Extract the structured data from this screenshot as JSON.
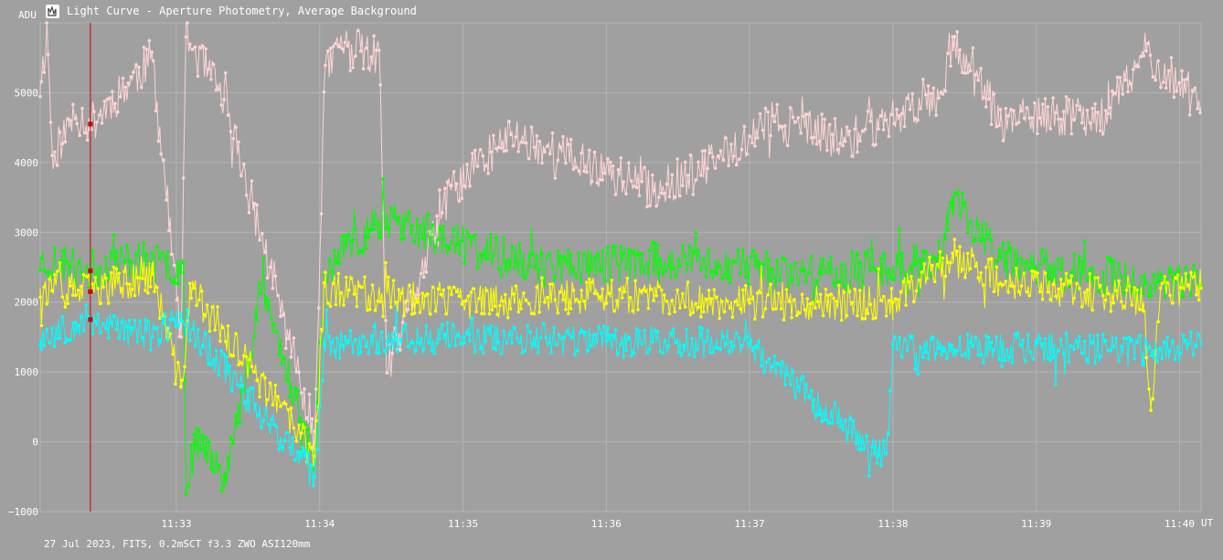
{
  "window": {
    "title": "Light Curve - Aperture Photometry, Average Background",
    "icon": "light-curve-app-icon"
  },
  "footer": "27 Jul 2023, FITS, 0.2mSCT f3.3 ZWO ASI120mm",
  "colors": {
    "background": "#a0a0a0",
    "grid": "#b4b4b4",
    "pink": "#ffd4d4",
    "green": "#00ff00",
    "yellow": "#ffff00",
    "cyan": "#00ffff",
    "cursor": "#cc0000"
  },
  "chart_data": {
    "type": "line",
    "ylabel": "ADU",
    "xlabel": "UT",
    "ylim": [
      -1000,
      6000
    ],
    "yticks": [
      5000,
      4000,
      3000,
      2000,
      1000,
      0,
      -1000
    ],
    "ytick_labels": [
      "5000",
      "4000",
      "3000",
      "2000",
      "1000",
      "0",
      "−1000"
    ],
    "xlim": [
      "11:32:03",
      "11:40:09"
    ],
    "xticks": [
      "11:33",
      "11:34",
      "11:35",
      "11:36",
      "11:37",
      "11:38",
      "11:39",
      "11:40"
    ],
    "grid": true,
    "cursor_time": "11:32:24",
    "series": [
      {
        "color": "#ffd4d4",
        "base": 4550,
        "amplitude": 300,
        "seed": 11,
        "points": [
          [
            "11:32:03",
            5100
          ],
          [
            "11:32:06",
            5900
          ],
          [
            "11:32:08",
            4100
          ],
          [
            "11:32:18",
            4700
          ],
          [
            "11:32:24",
            4550
          ],
          [
            "11:32:50",
            5500
          ],
          [
            "11:33:02",
            1500
          ],
          [
            "11:33:04",
            5800
          ],
          [
            "11:33:20",
            4900
          ],
          [
            "11:33:58",
            100
          ],
          [
            "11:34:02",
            5200
          ],
          [
            "11:34:08",
            5700
          ],
          [
            "11:34:25",
            5500
          ],
          [
            "11:34:28",
            1000
          ],
          [
            "11:34:55",
            3600
          ],
          [
            "11:35:20",
            4400
          ],
          [
            "11:36:20",
            3600
          ],
          [
            "11:36:40",
            3900
          ],
          [
            "11:37:10",
            4600
          ],
          [
            "11:37:40",
            4300
          ],
          [
            "11:38:20",
            5000
          ],
          [
            "11:38:25",
            5800
          ],
          [
            "11:38:45",
            4600
          ],
          [
            "11:39:30",
            4700
          ],
          [
            "11:39:46",
            5600
          ],
          [
            "11:40:09",
            4800
          ]
        ]
      },
      {
        "color": "#00ff00",
        "base": 2500,
        "amplitude": 280,
        "seed": 23,
        "points": [
          [
            "11:32:03",
            2600
          ],
          [
            "11:32:24",
            2450
          ],
          [
            "11:32:40",
            2600
          ],
          [
            "11:33:03",
            2500
          ],
          [
            "11:33:04",
            -500
          ],
          [
            "11:33:10",
            100
          ],
          [
            "11:33:20",
            -500
          ],
          [
            "11:33:25",
            200
          ],
          [
            "11:33:28",
            700
          ],
          [
            "11:33:35",
            2300
          ],
          [
            "11:33:58",
            -300
          ],
          [
            "11:34:02",
            2400
          ],
          [
            "11:34:25",
            3200
          ],
          [
            "11:35:30",
            2500
          ],
          [
            "11:36:30",
            2600
          ],
          [
            "11:37:30",
            2400
          ],
          [
            "11:38:20",
            2600
          ],
          [
            "11:38:25",
            3500
          ],
          [
            "11:38:45",
            2600
          ],
          [
            "11:39:45",
            2300
          ],
          [
            "11:40:09",
            2250
          ]
        ]
      },
      {
        "color": "#ffff00",
        "base": 2050,
        "amplitude": 260,
        "seed": 37,
        "points": [
          [
            "11:32:03",
            2200
          ],
          [
            "11:32:24",
            2150
          ],
          [
            "11:32:50",
            2400
          ],
          [
            "11:33:02",
            750
          ],
          [
            "11:33:06",
            2200
          ],
          [
            "11:33:58",
            -200
          ],
          [
            "11:34:02",
            2200
          ],
          [
            "11:35:00",
            2000
          ],
          [
            "11:36:00",
            2100
          ],
          [
            "11:37:00",
            2000
          ],
          [
            "11:38:00",
            2000
          ],
          [
            "11:38:25",
            2700
          ],
          [
            "11:38:45",
            2300
          ],
          [
            "11:39:45",
            2000
          ],
          [
            "11:39:48",
            450
          ],
          [
            "11:39:52",
            2200
          ],
          [
            "11:40:09",
            2200
          ]
        ]
      },
      {
        "color": "#00ffff",
        "base": 1500,
        "amplitude": 230,
        "seed": 53,
        "points": [
          [
            "11:32:03",
            1500
          ],
          [
            "11:32:24",
            1750
          ],
          [
            "11:32:50",
            1500
          ],
          [
            "11:33:02",
            1800
          ],
          [
            "11:33:58",
            -500
          ],
          [
            "11:34:02",
            1400
          ],
          [
            "11:35:00",
            1500
          ],
          [
            "11:36:00",
            1450
          ],
          [
            "11:37:00",
            1400
          ],
          [
            "11:37:54",
            -200
          ],
          [
            "11:37:58",
            100
          ],
          [
            "11:38:00",
            1300
          ],
          [
            "11:39:00",
            1350
          ],
          [
            "11:39:45",
            1300
          ],
          [
            "11:40:09",
            1400
          ]
        ]
      }
    ]
  }
}
